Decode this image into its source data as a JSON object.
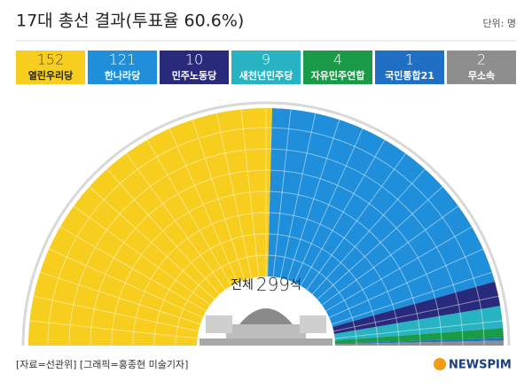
{
  "chart_data": {
    "type": "parliament",
    "title": "17대 총선 결과(투표율 60.6%)",
    "unit": "단위: 명",
    "categories": [
      "열린우리당",
      "한나라당",
      "민주노동당",
      "새천년민주당",
      "자유민주연합",
      "국민통합21",
      "무소속"
    ],
    "values": [
      152,
      121,
      10,
      9,
      4,
      1,
      2
    ],
    "colors": [
      "#f7cd1e",
      "#1f8fdb",
      "#2a2a7c",
      "#27b3c2",
      "#1b9a48",
      "#1f6fc4",
      "#8e8e8e"
    ],
    "center_prefix": "전체",
    "total": 299,
    "center_suffix": "석",
    "source": "[자료=선관위] [그래픽=홍종현 미술기자]",
    "logo": "NEWSPIM"
  }
}
